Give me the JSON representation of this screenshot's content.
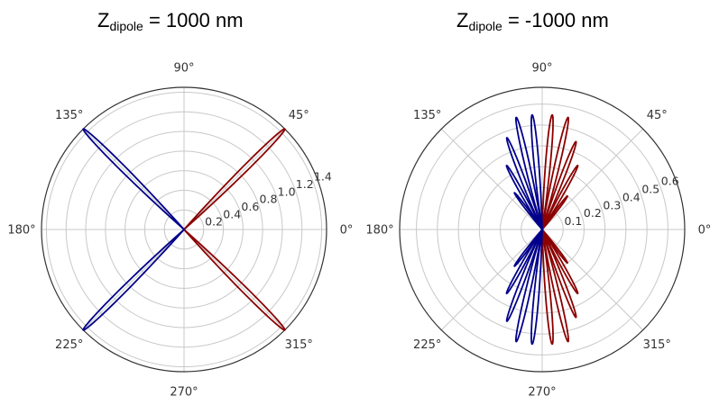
{
  "titles": [
    {
      "main": "Z",
      "sub": "dipole",
      "rest": " = 1000 nm"
    },
    {
      "main": "Z",
      "sub": "dipole",
      "rest": " = -1000 nm"
    }
  ],
  "colors": {
    "right_lobes": "#8B0000",
    "left_lobes": "#00008B",
    "grid": "#c8c8c8",
    "frame": "#333333"
  },
  "chart_data": [
    {
      "type": "polar",
      "title": "Zdipole = 1000 nm",
      "angle_ticks": [
        "0°",
        "45°",
        "90°",
        "135°",
        "180°",
        "225°",
        "270°",
        "315°"
      ],
      "r_ticks": [
        "0.2",
        "0.4",
        "0.6",
        "0.8",
        "1.0",
        "1.2",
        "1.4"
      ],
      "r_tick_values": [
        0.2,
        0.4,
        0.6,
        0.8,
        1.0,
        1.2,
        1.4
      ],
      "r_range": [
        0,
        1.45
      ],
      "grid": true,
      "lobes": [
        {
          "side": "right",
          "center_deg": 45,
          "peak": 1.45
        },
        {
          "side": "right",
          "center_deg": -45,
          "peak": 1.45
        },
        {
          "side": "left",
          "center_deg": 135,
          "peak": 1.45
        },
        {
          "side": "left",
          "center_deg": 225,
          "peak": 1.45
        }
      ]
    },
    {
      "type": "polar",
      "title": "Zdipole = -1000 nm",
      "angle_ticks": [
        "0°",
        "45°",
        "90°",
        "135°",
        "180°",
        "225°",
        "270°",
        "315°"
      ],
      "r_ticks": [
        "0.1",
        "0.2",
        "0.3",
        "0.4",
        "0.5",
        "0.6"
      ],
      "r_tick_values": [
        0.1,
        0.2,
        0.3,
        0.4,
        0.5,
        0.6
      ],
      "r_range": [
        0,
        0.68
      ],
      "grid": true,
      "lobes": [
        {
          "side": "right",
          "center_deg": 85,
          "peak": 0.55
        },
        {
          "side": "right",
          "center_deg": 77,
          "peak": 0.55
        },
        {
          "side": "right",
          "center_deg": 69,
          "peak": 0.45
        },
        {
          "side": "right",
          "center_deg": 61,
          "peak": 0.35
        },
        {
          "side": "right",
          "center_deg": 53,
          "peak": 0.2
        },
        {
          "side": "right",
          "center_deg": -85,
          "peak": 0.55
        },
        {
          "side": "right",
          "center_deg": -77,
          "peak": 0.55
        },
        {
          "side": "right",
          "center_deg": -69,
          "peak": 0.45
        },
        {
          "side": "right",
          "center_deg": -61,
          "peak": 0.35
        },
        {
          "side": "right",
          "center_deg": -53,
          "peak": 0.2
        },
        {
          "side": "left",
          "center_deg": 95,
          "peak": 0.55
        },
        {
          "side": "left",
          "center_deg": 103,
          "peak": 0.55
        },
        {
          "side": "left",
          "center_deg": 111,
          "peak": 0.47
        },
        {
          "side": "left",
          "center_deg": 119,
          "peak": 0.35
        },
        {
          "side": "left",
          "center_deg": 127,
          "peak": 0.22
        },
        {
          "side": "left",
          "center_deg": 265,
          "peak": 0.55
        },
        {
          "side": "left",
          "center_deg": 257,
          "peak": 0.55
        },
        {
          "side": "left",
          "center_deg": 249,
          "peak": 0.47
        },
        {
          "side": "left",
          "center_deg": 241,
          "peak": 0.35
        },
        {
          "side": "left",
          "center_deg": 233,
          "peak": 0.22
        }
      ]
    }
  ]
}
